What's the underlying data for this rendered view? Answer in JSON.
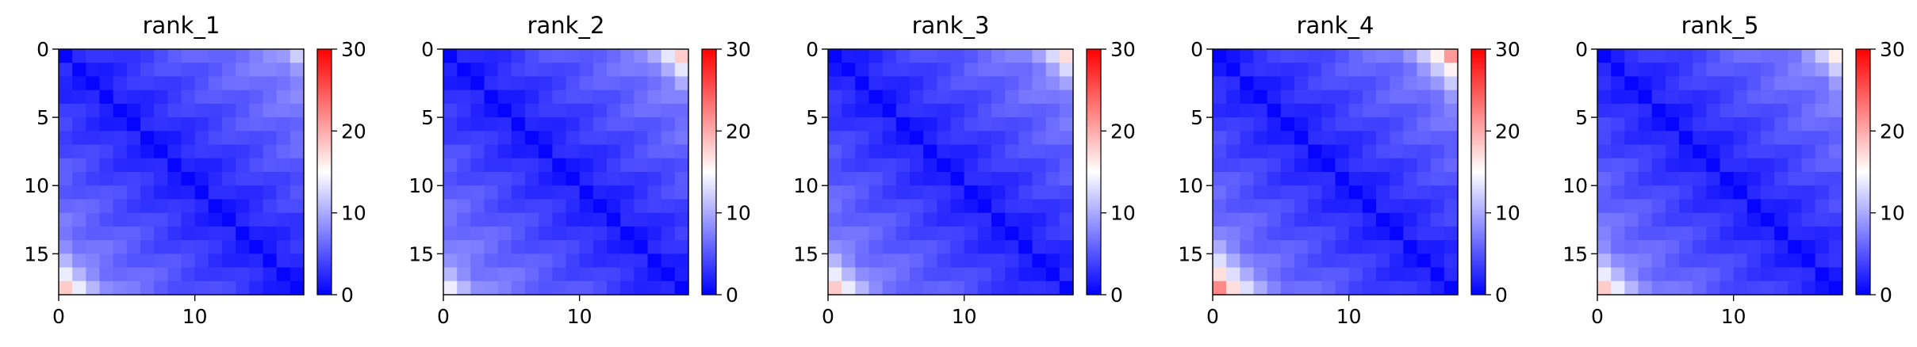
{
  "chart_data": [
    {
      "type": "heatmap",
      "title": "rank_1",
      "size": 18,
      "xticks": [
        0,
        10
      ],
      "yticks": [
        0,
        5,
        10,
        15
      ],
      "colorbar": {
        "ticks": [
          0,
          10,
          20,
          30
        ],
        "vmin": 0,
        "vmax": 30,
        "colors": [
          "#0000ff",
          "#ffffff",
          "#ff0000"
        ]
      },
      "edge_highlights": {
        "top_right": 12,
        "bottom_left": 18,
        "decay": 7
      }
    },
    {
      "type": "heatmap",
      "title": "rank_2",
      "size": 18,
      "xticks": [
        0,
        10
      ],
      "yticks": [
        0,
        5,
        10,
        15
      ],
      "colorbar": {
        "ticks": [
          0,
          10,
          20,
          30
        ],
        "vmin": 0,
        "vmax": 30,
        "colors": [
          "#0000ff",
          "#ffffff",
          "#ff0000"
        ]
      },
      "edge_highlights": {
        "top_right": 18,
        "bottom_left": 14,
        "decay": 7
      }
    },
    {
      "type": "heatmap",
      "title": "rank_3",
      "size": 18,
      "xticks": [
        0,
        10
      ],
      "yticks": [
        0,
        5,
        10,
        15
      ],
      "colorbar": {
        "ticks": [
          0,
          10,
          20,
          30
        ],
        "vmin": 0,
        "vmax": 30,
        "colors": [
          "#0000ff",
          "#ffffff",
          "#ff0000"
        ]
      },
      "edge_highlights": {
        "top_right": 17,
        "bottom_left": 18,
        "decay": 7
      }
    },
    {
      "type": "heatmap",
      "title": "rank_4",
      "size": 18,
      "xticks": [
        0,
        10
      ],
      "yticks": [
        0,
        5,
        10,
        15
      ],
      "colorbar": {
        "ticks": [
          0,
          10,
          20,
          30
        ],
        "vmin": 0,
        "vmax": 30,
        "colors": [
          "#0000ff",
          "#ffffff",
          "#ff0000"
        ]
      },
      "edge_highlights": {
        "top_right": 21,
        "bottom_left": 22,
        "decay": 7
      }
    },
    {
      "type": "heatmap",
      "title": "rank_5",
      "size": 18,
      "xticks": [
        0,
        10
      ],
      "yticks": [
        0,
        5,
        10,
        15
      ],
      "colorbar": {
        "ticks": [
          0,
          10,
          20,
          30
        ],
        "vmin": 0,
        "vmax": 30,
        "colors": [
          "#0000ff",
          "#ffffff",
          "#ff0000"
        ]
      },
      "edge_highlights": {
        "top_right": 16,
        "bottom_left": 18,
        "decay": 7
      }
    }
  ]
}
